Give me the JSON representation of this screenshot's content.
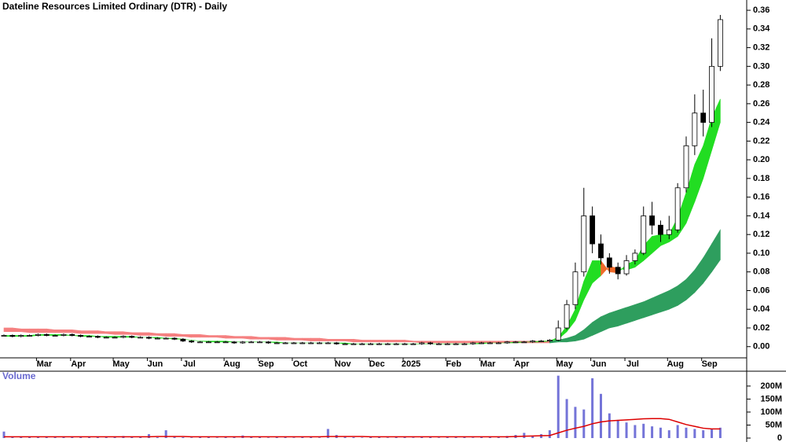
{
  "chart_data": {
    "type": "candlestick",
    "title": "Dateline Resources Limited Ordinary (DTR) - Daily",
    "categories": [
      null,
      null,
      null,
      null,
      "Mar",
      null,
      null,
      null,
      "Apr",
      null,
      null,
      null,
      null,
      "May",
      null,
      null,
      null,
      "Jun",
      null,
      null,
      null,
      "Jul",
      null,
      null,
      null,
      null,
      "Aug",
      null,
      null,
      null,
      "Sep",
      null,
      null,
      null,
      "Oct",
      null,
      null,
      null,
      null,
      "Nov",
      null,
      null,
      null,
      "Dec",
      null,
      null,
      null,
      "2025",
      null,
      null,
      null,
      null,
      "Feb",
      null,
      null,
      null,
      "Mar",
      null,
      null,
      null,
      "Apr",
      null,
      null,
      null,
      null,
      "May",
      null,
      null,
      null,
      "Jun",
      null,
      null,
      null,
      "Jul",
      null,
      null,
      null,
      null,
      "Aug",
      null,
      null,
      null,
      "Sep",
      null,
      null
    ],
    "open": [
      0.012,
      0.012,
      0.011,
      0.012,
      0.012,
      0.013,
      0.012,
      0.012,
      0.013,
      0.012,
      0.011,
      0.011,
      0.01,
      0.01,
      0.01,
      0.011,
      0.01,
      0.01,
      0.009,
      0.009,
      0.009,
      0.008,
      0.006,
      0.005,
      0.005,
      0.005,
      0.005,
      0.005,
      0.004,
      0.005,
      0.005,
      0.005,
      0.004,
      0.004,
      0.004,
      0.004,
      0.004,
      0.004,
      0.004,
      0.004,
      0.003,
      0.003,
      0.003,
      0.003,
      0.003,
      0.003,
      0.003,
      0.003,
      0.003,
      0.003,
      0.004,
      0.003,
      0.003,
      0.003,
      0.003,
      0.003,
      0.004,
      0.004,
      0.004,
      0.004,
      0.005,
      0.005,
      0.005,
      0.006,
      0.006,
      0.007,
      0.02,
      0.045,
      0.08,
      0.14,
      0.11,
      0.095,
      0.085,
      0.078,
      0.092,
      0.1,
      0.14,
      0.13,
      0.12,
      0.125,
      0.17,
      0.215,
      0.25,
      0.24,
      0.3
    ],
    "high": [
      0.013,
      0.013,
      0.013,
      0.013,
      0.014,
      0.014,
      0.013,
      0.014,
      0.014,
      0.013,
      0.012,
      0.012,
      0.011,
      0.011,
      0.012,
      0.012,
      0.011,
      0.011,
      0.01,
      0.01,
      0.01,
      0.009,
      0.007,
      0.006,
      0.006,
      0.006,
      0.006,
      0.006,
      0.006,
      0.006,
      0.006,
      0.006,
      0.005,
      0.005,
      0.005,
      0.005,
      0.005,
      0.005,
      0.005,
      0.005,
      0.004,
      0.004,
      0.004,
      0.004,
      0.004,
      0.004,
      0.004,
      0.004,
      0.004,
      0.005,
      0.005,
      0.004,
      0.004,
      0.004,
      0.004,
      0.005,
      0.005,
      0.005,
      0.005,
      0.006,
      0.006,
      0.006,
      0.007,
      0.007,
      0.008,
      0.028,
      0.05,
      0.09,
      0.17,
      0.15,
      0.12,
      0.1,
      0.09,
      0.098,
      0.104,
      0.15,
      0.155,
      0.135,
      0.14,
      0.175,
      0.225,
      0.27,
      0.275,
      0.33,
      0.355
    ],
    "low": [
      0.011,
      0.01,
      0.01,
      0.011,
      0.011,
      0.011,
      0.011,
      0.011,
      0.011,
      0.01,
      0.01,
      0.009,
      0.009,
      0.009,
      0.009,
      0.009,
      0.009,
      0.008,
      0.008,
      0.008,
      0.007,
      0.005,
      0.004,
      0.004,
      0.004,
      0.004,
      0.004,
      0.003,
      0.003,
      0.004,
      0.004,
      0.003,
      0.003,
      0.003,
      0.003,
      0.003,
      0.003,
      0.003,
      0.003,
      0.002,
      0.002,
      0.002,
      0.002,
      0.002,
      0.002,
      0.002,
      0.002,
      0.002,
      0.002,
      0.002,
      0.002,
      0.002,
      0.002,
      0.002,
      0.002,
      0.002,
      0.003,
      0.003,
      0.003,
      0.003,
      0.004,
      0.004,
      0.004,
      0.005,
      0.005,
      0.006,
      0.018,
      0.04,
      0.075,
      0.1,
      0.088,
      0.078,
      0.072,
      0.076,
      0.088,
      0.098,
      0.12,
      0.112,
      0.115,
      0.122,
      0.165,
      0.205,
      0.225,
      0.235,
      0.295
    ],
    "close": [
      0.012,
      0.011,
      0.012,
      0.012,
      0.013,
      0.012,
      0.012,
      0.013,
      0.012,
      0.011,
      0.011,
      0.01,
      0.01,
      0.01,
      0.011,
      0.01,
      0.01,
      0.009,
      0.009,
      0.009,
      0.008,
      0.006,
      0.005,
      0.005,
      0.005,
      0.005,
      0.005,
      0.004,
      0.005,
      0.005,
      0.005,
      0.004,
      0.004,
      0.004,
      0.004,
      0.004,
      0.004,
      0.004,
      0.004,
      0.003,
      0.003,
      0.003,
      0.003,
      0.003,
      0.003,
      0.003,
      0.003,
      0.003,
      0.003,
      0.004,
      0.003,
      0.003,
      0.003,
      0.003,
      0.003,
      0.004,
      0.004,
      0.004,
      0.004,
      0.005,
      0.005,
      0.005,
      0.006,
      0.006,
      0.007,
      0.02,
      0.045,
      0.08,
      0.14,
      0.11,
      0.095,
      0.085,
      0.078,
      0.092,
      0.1,
      0.14,
      0.13,
      0.12,
      0.125,
      0.17,
      0.215,
      0.25,
      0.24,
      0.3,
      0.35
    ],
    "up_color": "#ffffff",
    "down_color": "#000000",
    "ylim": [
      -0.012,
      0.371
    ],
    "yticks": [
      {
        "value": 0,
        "label": "0.00"
      },
      {
        "value": 0.02,
        "label": "0.02"
      },
      {
        "value": 0.04,
        "label": "0.04"
      },
      {
        "value": 0.06,
        "label": "0.06"
      },
      {
        "value": 0.08,
        "label": "0.08"
      },
      {
        "value": 0.1,
        "label": "0.10"
      },
      {
        "value": 0.12,
        "label": "0.12"
      },
      {
        "value": 0.14,
        "label": "0.14"
      },
      {
        "value": 0.16,
        "label": "0.16"
      },
      {
        "value": 0.18,
        "label": "0.18"
      },
      {
        "value": 0.2,
        "label": "0.20"
      },
      {
        "value": 0.22,
        "label": "0.22"
      },
      {
        "value": 0.24,
        "label": "0.24"
      },
      {
        "value": 0.26,
        "label": "0.26"
      },
      {
        "value": 0.28,
        "label": "0.28"
      },
      {
        "value": 0.3,
        "label": "0.30"
      },
      {
        "value": 0.32,
        "label": "0.32"
      },
      {
        "value": 0.34,
        "label": "0.34"
      },
      {
        "value": 0.36,
        "label": "0.36"
      }
    ],
    "short_band": {
      "fast": [
        0.012,
        0.012,
        0.012,
        0.012,
        0.013,
        0.013,
        0.013,
        0.013,
        0.012,
        0.012,
        0.012,
        0.011,
        0.011,
        0.011,
        0.011,
        0.011,
        0.01,
        0.01,
        0.01,
        0.009,
        0.009,
        0.008,
        0.007,
        0.006,
        0.006,
        0.006,
        0.006,
        0.005,
        0.005,
        0.005,
        0.005,
        0.005,
        0.005,
        0.004,
        0.004,
        0.004,
        0.004,
        0.004,
        0.004,
        0.004,
        0.004,
        0.003,
        0.003,
        0.003,
        0.003,
        0.003,
        0.003,
        0.003,
        0.003,
        0.003,
        0.003,
        0.003,
        0.003,
        0.003,
        0.003,
        0.003,
        0.004,
        0.004,
        0.004,
        0.004,
        0.005,
        0.005,
        0.005,
        0.006,
        0.006,
        0.01,
        0.022,
        0.04,
        0.07,
        0.092,
        0.092,
        0.08,
        0.079,
        0.088,
        0.092,
        0.108,
        0.118,
        0.12,
        0.12,
        0.138,
        0.165,
        0.195,
        0.215,
        0.245,
        0.265
      ],
      "slow": [
        0.011,
        0.011,
        0.011,
        0.011,
        0.012,
        0.012,
        0.012,
        0.012,
        0.012,
        0.011,
        0.011,
        0.011,
        0.01,
        0.01,
        0.01,
        0.01,
        0.01,
        0.01,
        0.009,
        0.009,
        0.008,
        0.008,
        0.007,
        0.006,
        0.005,
        0.005,
        0.005,
        0.005,
        0.005,
        0.005,
        0.005,
        0.005,
        0.004,
        0.004,
        0.004,
        0.004,
        0.004,
        0.004,
        0.004,
        0.004,
        0.003,
        0.003,
        0.003,
        0.003,
        0.003,
        0.003,
        0.003,
        0.003,
        0.003,
        0.003,
        0.003,
        0.003,
        0.003,
        0.003,
        0.003,
        0.003,
        0.003,
        0.004,
        0.004,
        0.004,
        0.004,
        0.005,
        0.005,
        0.005,
        0.006,
        0.008,
        0.016,
        0.028,
        0.05,
        0.068,
        0.076,
        0.086,
        0.084,
        0.082,
        0.085,
        0.092,
        0.1,
        0.108,
        0.112,
        0.118,
        0.132,
        0.155,
        0.18,
        0.21,
        0.24
      ],
      "up_color": "#22dd22",
      "down_color": "#f06a2a"
    },
    "long_band": {
      "upper": [
        0.02,
        0.02,
        0.019,
        0.019,
        0.019,
        0.019,
        0.018,
        0.018,
        0.018,
        0.017,
        0.017,
        0.017,
        0.016,
        0.016,
        0.016,
        0.015,
        0.015,
        0.015,
        0.014,
        0.014,
        0.014,
        0.013,
        0.013,
        0.013,
        0.012,
        0.012,
        0.012,
        0.011,
        0.011,
        0.011,
        0.01,
        0.01,
        0.01,
        0.01,
        0.009,
        0.009,
        0.009,
        0.009,
        0.008,
        0.008,
        0.008,
        0.008,
        0.007,
        0.007,
        0.007,
        0.007,
        0.007,
        0.007,
        0.006,
        0.006,
        0.006,
        0.006,
        0.006,
        0.006,
        0.006,
        0.006,
        0.006,
        0.006,
        0.006,
        0.006,
        0.006,
        0.006,
        0.006,
        0.006,
        0.006,
        0.007,
        0.009,
        0.012,
        0.018,
        0.026,
        0.032,
        0.036,
        0.039,
        0.042,
        0.045,
        0.048,
        0.052,
        0.056,
        0.06,
        0.065,
        0.072,
        0.082,
        0.095,
        0.11,
        0.125
      ],
      "lower": [
        0.016,
        0.016,
        0.016,
        0.015,
        0.015,
        0.015,
        0.015,
        0.015,
        0.015,
        0.014,
        0.014,
        0.014,
        0.014,
        0.013,
        0.013,
        0.013,
        0.012,
        0.012,
        0.012,
        0.011,
        0.011,
        0.011,
        0.01,
        0.01,
        0.01,
        0.01,
        0.009,
        0.009,
        0.009,
        0.008,
        0.008,
        0.008,
        0.007,
        0.007,
        0.007,
        0.007,
        0.006,
        0.006,
        0.006,
        0.006,
        0.006,
        0.005,
        0.005,
        0.005,
        0.005,
        0.005,
        0.005,
        0.005,
        0.005,
        0.004,
        0.004,
        0.004,
        0.004,
        0.004,
        0.004,
        0.004,
        0.004,
        0.004,
        0.004,
        0.004,
        0.004,
        0.004,
        0.004,
        0.004,
        0.004,
        0.005,
        0.005,
        0.006,
        0.008,
        0.012,
        0.016,
        0.02,
        0.022,
        0.025,
        0.028,
        0.031,
        0.034,
        0.037,
        0.04,
        0.044,
        0.05,
        0.058,
        0.068,
        0.08,
        0.093
      ],
      "up_color": "#2e9e5e",
      "down_color": "#f58080"
    },
    "volume": {
      "title": "Volume",
      "values": [
        25,
        4,
        3,
        5,
        3,
        4,
        6,
        3,
        5,
        4,
        3,
        3,
        4,
        4,
        8,
        3,
        3,
        15,
        3,
        30,
        4,
        3,
        2,
        3,
        5,
        2,
        3,
        4,
        10,
        3,
        3,
        2,
        4,
        3,
        2,
        3,
        3,
        2,
        35,
        12,
        4,
        3,
        2,
        3,
        4,
        2,
        3,
        3,
        2,
        4,
        3,
        2,
        3,
        5,
        3,
        2,
        4,
        3,
        6,
        8,
        12,
        20,
        8,
        15,
        30,
        240,
        150,
        120,
        110,
        230,
        170,
        95,
        70,
        60,
        50,
        55,
        45,
        40,
        30,
        50,
        40,
        35,
        30,
        35,
        40
      ],
      "color": "#7474d8",
      "ma": [
        5,
        5,
        5,
        5,
        5,
        5,
        5,
        5,
        5,
        5,
        5,
        5,
        5,
        5,
        5,
        5,
        5,
        5,
        6,
        6,
        6,
        6,
        5,
        5,
        5,
        5,
        5,
        5,
        5,
        5,
        5,
        5,
        5,
        5,
        5,
        5,
        5,
        5,
        6,
        6,
        6,
        6,
        6,
        5,
        5,
        5,
        5,
        5,
        5,
        5,
        5,
        5,
        5,
        5,
        5,
        5,
        5,
        5,
        5,
        5,
        6,
        7,
        8,
        9,
        10,
        20,
        30,
        38,
        45,
        55,
        62,
        66,
        68,
        70,
        72,
        74,
        75,
        75,
        72,
        62,
        52,
        45,
        38,
        35,
        35
      ],
      "ma_color": "#dd0000",
      "ylim": [
        0,
        245
      ],
      "yticks": [
        0,
        {
          "value": 50,
          "label": "50M"
        },
        {
          "value": 100,
          "label": "100M"
        },
        {
          "value": 150,
          "label": "150M"
        },
        {
          "value": 200,
          "label": "200M"
        }
      ]
    }
  }
}
